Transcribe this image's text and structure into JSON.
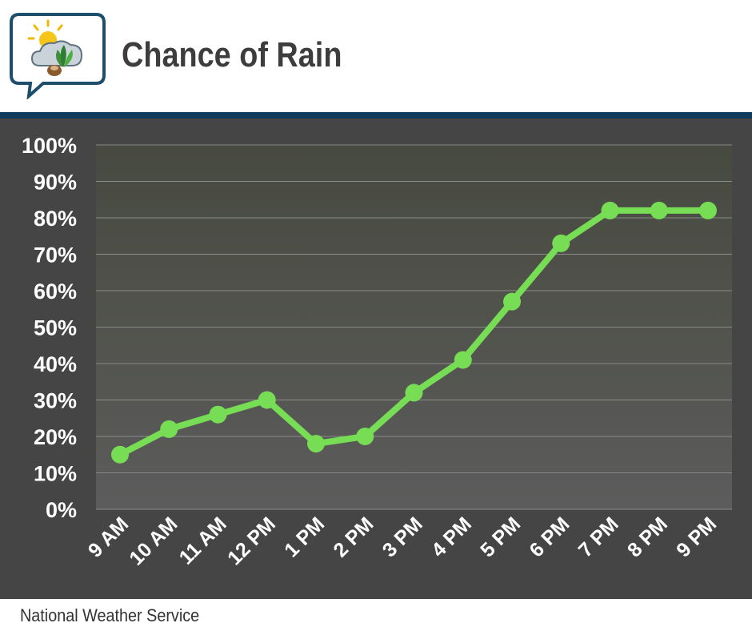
{
  "header": {
    "title": "Chance of Rain"
  },
  "footer": {
    "source": "National Weather Service"
  },
  "colors": {
    "line": "#77dd55",
    "divider": "#0f3b5c",
    "panel": "#454545",
    "plot_top": "#474a3f",
    "plot_bottom": "#5c5c5c",
    "title_text": "#3d3d3d"
  },
  "logo": {
    "icon": "sun-cloud-leaf-speech-bubble-icon"
  },
  "chart_data": {
    "type": "line",
    "title": "Chance of Rain",
    "xlabel": "",
    "ylabel": "",
    "ylim": [
      0,
      100
    ],
    "grid": true,
    "legend": "none",
    "yticks": [
      "0%",
      "10%",
      "20%",
      "30%",
      "40%",
      "50%",
      "60%",
      "70%",
      "80%",
      "90%",
      "100%"
    ],
    "categories": [
      "9 AM",
      "10 AM",
      "11 AM",
      "12 PM",
      "1 PM",
      "2 PM",
      "3 PM",
      "4 PM",
      "5 PM",
      "6 PM",
      "7 PM",
      "8 PM",
      "9 PM"
    ],
    "series": [
      {
        "name": "Chance of Rain",
        "values": [
          15,
          22,
          26,
          30,
          18,
          20,
          32,
          41,
          57,
          73,
          82,
          82,
          82
        ]
      }
    ]
  }
}
